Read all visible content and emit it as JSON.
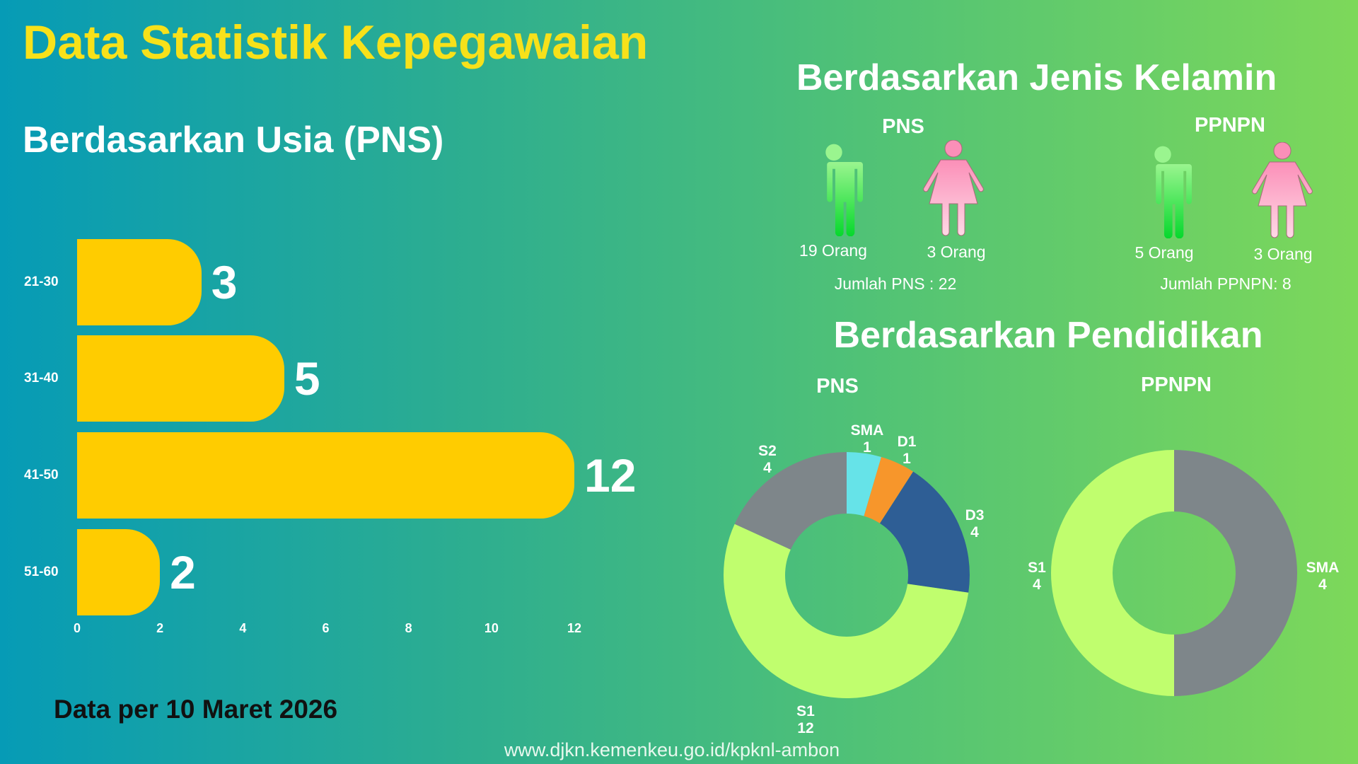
{
  "title": "Data Statistik Kepegawaian",
  "date_note": "Data per 10 Maret 2026",
  "footer_url": "www.djkn.kemenkeu.go.id/kpknl-ambon",
  "gender": {
    "heading": "Berdasarkan Jenis Kelamin",
    "groups": [
      {
        "label": "PNS",
        "male": "19 Orang",
        "female": "3 Orang",
        "total": "Jumlah PNS : 22"
      },
      {
        "label": "PPNPN",
        "male": "5 Orang",
        "female": "3 Orang",
        "total": "Jumlah PPNPN: 8"
      }
    ]
  },
  "chart_data": [
    {
      "type": "bar",
      "orientation": "horizontal",
      "title": "Berdasarkan Usia (PNS)",
      "categories": [
        "21-30",
        "31-40",
        "41-50",
        "51-60"
      ],
      "values": [
        3,
        5,
        12,
        2
      ],
      "xlim": [
        0,
        12
      ],
      "xticks": [
        "0",
        "2",
        "4",
        "6",
        "8",
        "10",
        "12"
      ],
      "color": "#ffcc00"
    },
    {
      "type": "pie",
      "donut": true,
      "title": "Berdasarkan Pendidikan",
      "subtitle": "PNS",
      "slices": [
        {
          "label": "SMA",
          "value": 1,
          "color": "#66e3e8"
        },
        {
          "label": "D1",
          "value": 1,
          "color": "#f7962b"
        },
        {
          "label": "D3",
          "value": 4,
          "color": "#2e5e95"
        },
        {
          "label": "S1",
          "value": 12,
          "color": "#c0fe6e"
        },
        {
          "label": "S2",
          "value": 4,
          "color": "#7e868a"
        }
      ]
    },
    {
      "type": "pie",
      "donut": true,
      "subtitle": "PPNPN",
      "slices": [
        {
          "label": "SMA",
          "value": 4,
          "color": "#7e868a"
        },
        {
          "label": "S1",
          "value": 4,
          "color": "#c0fe6e"
        }
      ]
    }
  ]
}
